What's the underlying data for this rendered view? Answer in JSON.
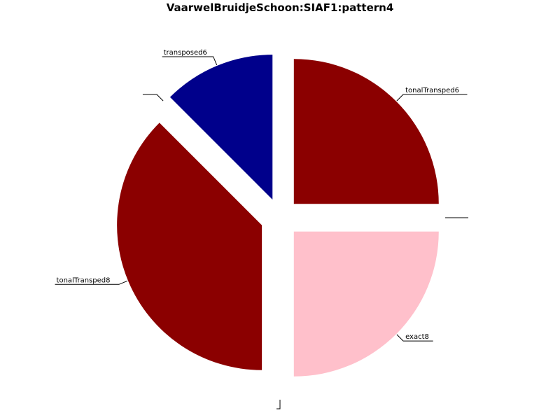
{
  "chart_data": {
    "type": "pie",
    "title": "VaarwelBruidjeSchoon:SIAF1:pattern4",
    "slices": [
      {
        "label": "tonalTransped6",
        "value": 25,
        "color": "#8b0000"
      },
      {
        "label": "",
        "value": 0,
        "color": "#000000"
      },
      {
        "label": "exact8",
        "value": 25,
        "color": "#ffc0cb"
      },
      {
        "label": "",
        "value": 0,
        "color": "#000000"
      },
      {
        "label": "tonalTransped8",
        "value": 37.5,
        "color": "#8b0000"
      },
      {
        "label": "",
        "value": 0,
        "color": "#000000"
      },
      {
        "label": "transposed6",
        "value": 12.5,
        "color": "#00008b"
      }
    ],
    "start_angle_deg": 90,
    "direction": "clockwise",
    "exploded": true
  }
}
